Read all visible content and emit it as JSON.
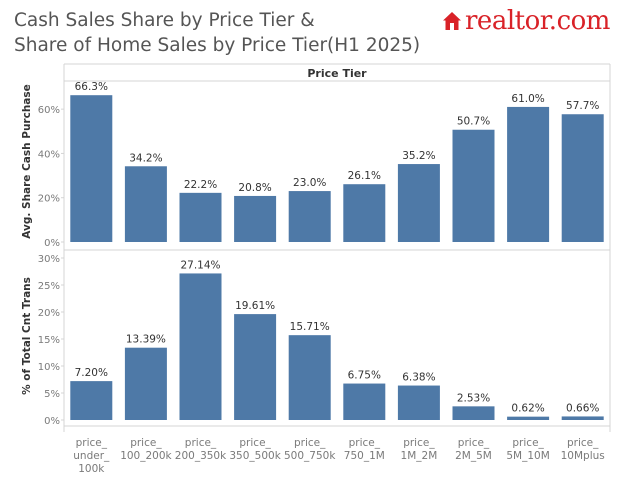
{
  "header": {
    "title_line1": "Cash Sales Share by Price Tier &",
    "title_line2": "Share of Home Sales by Price Tier(H1 2025)",
    "brand": "realtor.com",
    "brand_icon": "house-icon",
    "brand_color": "#d92228"
  },
  "chart_data": {
    "type": "bar",
    "column_header": "Price Tier",
    "bar_color": "#4e79a7",
    "categories": [
      [
        "price_",
        "under_",
        "100k"
      ],
      [
        "price_",
        "100_200k"
      ],
      [
        "price_",
        "200_350k"
      ],
      [
        "price_",
        "350_500k"
      ],
      [
        "price_",
        "500_750k"
      ],
      [
        "price_",
        "750_1M"
      ],
      [
        "price_",
        "1M_2M"
      ],
      [
        "price_",
        "2M_5M"
      ],
      [
        "price_",
        "5M_10M"
      ],
      [
        "price_",
        "10Mplus"
      ]
    ],
    "panels": [
      {
        "ylabel": "Avg. Share Cash Purchase",
        "ylim": [
          0,
          70
        ],
        "ticks": [
          0,
          20,
          40,
          60
        ],
        "tick_labels": [
          "0%",
          "20%",
          "40%",
          "60%"
        ],
        "values": [
          66.3,
          34.2,
          22.2,
          20.8,
          23.0,
          26.1,
          35.2,
          50.7,
          61.0,
          57.7
        ],
        "labels": [
          "66.3%",
          "34.2%",
          "22.2%",
          "20.8%",
          "23.0%",
          "26.1%",
          "35.2%",
          "50.7%",
          "61.0%",
          "57.7%"
        ]
      },
      {
        "ylabel": "% of Total Cnt Trans",
        "ylim": [
          0,
          30
        ],
        "ticks": [
          0,
          5,
          10,
          15,
          20,
          25,
          30
        ],
        "tick_labels": [
          "0%",
          "5%",
          "10%",
          "15%",
          "20%",
          "25%",
          "30%"
        ],
        "values": [
          7.2,
          13.39,
          27.14,
          19.61,
          15.71,
          6.75,
          6.38,
          2.53,
          0.62,
          0.66
        ],
        "labels": [
          "7.20%",
          "13.39%",
          "27.14%",
          "19.61%",
          "15.71%",
          "6.75%",
          "6.38%",
          "2.53%",
          "0.62%",
          "0.66%"
        ]
      }
    ],
    "grid": false,
    "legend": "none"
  }
}
